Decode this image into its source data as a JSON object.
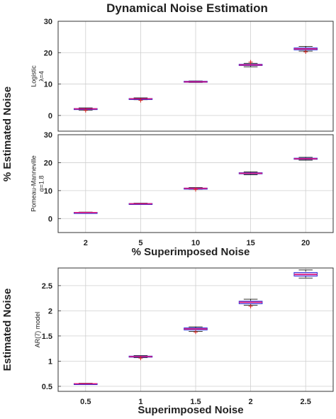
{
  "figure": {
    "title": "Dynamical Noise Estimation",
    "top_ylabel": "% Estimated Noise",
    "top_xlabel": "% Superimposed Noise",
    "bottom_ylabel": "Estimated Noise",
    "bottom_xlabel": "Superimposed Noise"
  },
  "colors": {
    "box": "#2b2bd6",
    "median": "#e0197d",
    "whisker": "#111111",
    "outlier": "#d42020",
    "grid": "#cfcfcf",
    "fill": "#c9a3e6"
  },
  "chart_data": [
    {
      "type": "box",
      "panel_label_lines": [
        "Logistic",
        "λ=4"
      ],
      "categories": [
        "2",
        "5",
        "10",
        "15",
        "20"
      ],
      "ylim": [
        -5,
        30
      ],
      "yticks": [
        "0",
        "10",
        "20",
        "30"
      ],
      "grid": true,
      "boxes": [
        {
          "min": 1.7,
          "q1": 2.0,
          "median": 2.1,
          "q3": 2.2,
          "max": 2.4
        },
        {
          "min": 5.0,
          "q1": 5.2,
          "median": 5.3,
          "q3": 5.4,
          "max": 5.6
        },
        {
          "min": 10.5,
          "q1": 10.6,
          "median": 10.7,
          "q3": 10.9,
          "max": 11.0
        },
        {
          "min": 15.5,
          "q1": 15.9,
          "median": 16.1,
          "q3": 16.3,
          "max": 16.6
        },
        {
          "min": 20.5,
          "q1": 20.9,
          "median": 21.2,
          "q3": 21.5,
          "max": 22.0
        }
      ],
      "outliers": [
        [
          0,
          1.6
        ],
        [
          1,
          4.8
        ],
        [
          3,
          17.0
        ],
        [
          4,
          20.3
        ]
      ]
    },
    {
      "type": "box",
      "panel_label_lines": [
        "Pomeau-Manneville",
        "α=1.8"
      ],
      "categories": [
        "2",
        "5",
        "10",
        "15",
        "20"
      ],
      "ylim": [
        -5,
        30
      ],
      "yticks": [
        "0",
        "10",
        "20",
        "30"
      ],
      "grid": true,
      "boxes": [
        {
          "min": 2.0,
          "q1": 2.1,
          "median": 2.15,
          "q3": 2.2,
          "max": 2.3
        },
        {
          "min": 5.1,
          "q1": 5.2,
          "median": 5.3,
          "q3": 5.4,
          "max": 5.5
        },
        {
          "min": 10.5,
          "q1": 10.6,
          "median": 10.8,
          "q3": 10.9,
          "max": 11.1
        },
        {
          "min": 15.7,
          "q1": 16.0,
          "median": 16.2,
          "q3": 16.4,
          "max": 16.7
        },
        {
          "min": 20.9,
          "q1": 21.2,
          "median": 21.4,
          "q3": 21.6,
          "max": 21.9
        }
      ],
      "outliers": [
        [
          2,
          10.4
        ]
      ]
    },
    {
      "type": "box",
      "panel_label_lines": [
        "AR(7) model"
      ],
      "categories": [
        "0.5",
        "1",
        "1.5",
        "2",
        "2.5"
      ],
      "ylim": [
        0.4,
        2.85
      ],
      "yticks": [
        "0.5",
        "1",
        "1.5",
        "2",
        "2.5"
      ],
      "grid": true,
      "boxes": [
        {
          "min": 0.54,
          "q1": 0.545,
          "median": 0.55,
          "q3": 0.555,
          "max": 0.56
        },
        {
          "min": 1.07,
          "q1": 1.08,
          "median": 1.09,
          "q3": 1.1,
          "max": 1.11
        },
        {
          "min": 1.59,
          "q1": 1.62,
          "median": 1.64,
          "q3": 1.66,
          "max": 1.68
        },
        {
          "min": 2.11,
          "q1": 2.14,
          "median": 2.17,
          "q3": 2.19,
          "max": 2.23
        },
        {
          "min": 2.65,
          "q1": 2.69,
          "median": 2.72,
          "q3": 2.76,
          "max": 2.81
        }
      ],
      "outliers": [
        [
          1,
          1.06
        ],
        [
          2,
          1.58
        ],
        [
          3,
          2.09
        ]
      ]
    }
  ]
}
